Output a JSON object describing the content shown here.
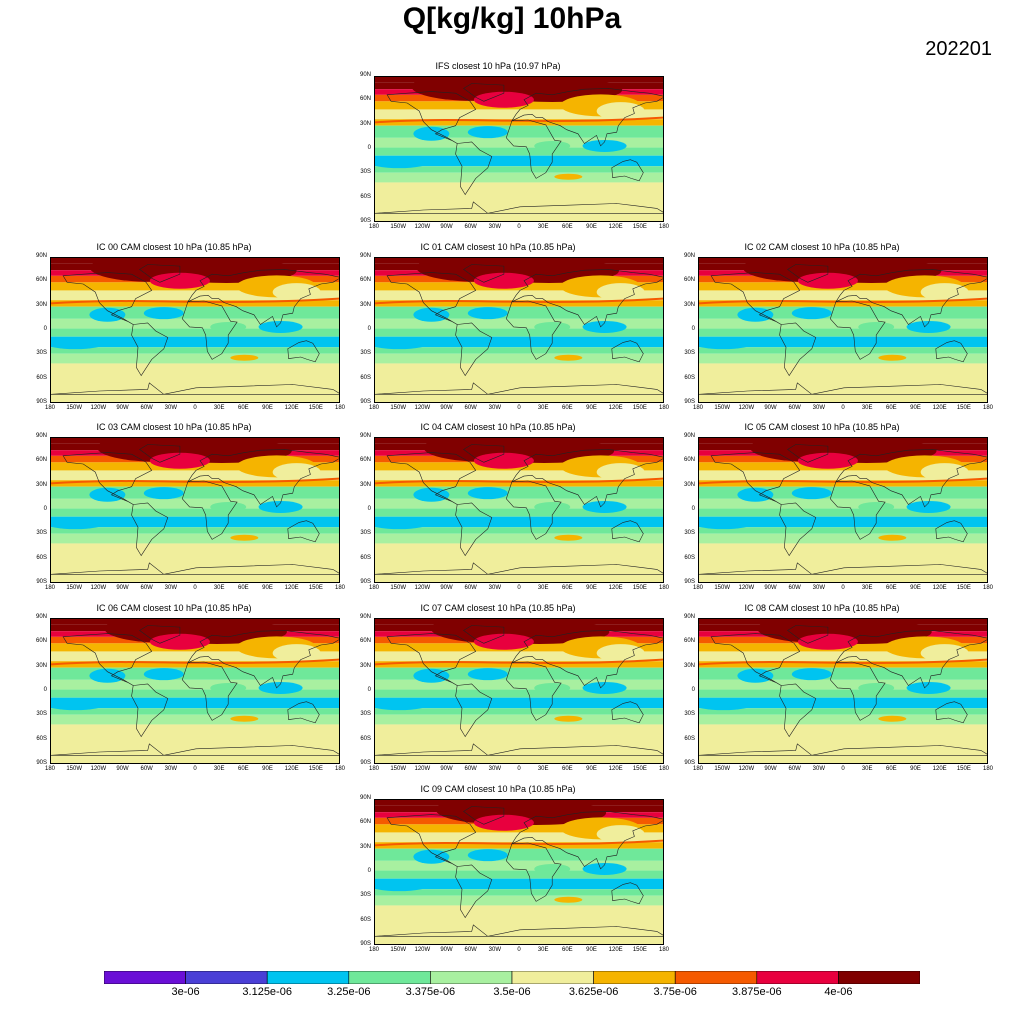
{
  "title": "Q[kg/kg] 10hPa",
  "date": "202201",
  "panels": [
    {
      "title": "IFS closest 10 hPa (10.97 hPa)",
      "variant": 0
    },
    {
      "title": "IC 00 CAM closest 10 hPa (10.85 hPa)",
      "variant": 1
    },
    {
      "title": "IC 01 CAM closest 10 hPa (10.85 hPa)",
      "variant": 2
    },
    {
      "title": "IC 02 CAM closest 10 hPa (10.85 hPa)",
      "variant": 3
    },
    {
      "title": "IC 03 CAM closest 10 hPa (10.85 hPa)",
      "variant": 4
    },
    {
      "title": "IC 04 CAM closest 10 hPa (10.85 hPa)",
      "variant": 5
    },
    {
      "title": "IC 05 CAM closest 10 hPa (10.85 hPa)",
      "variant": 6
    },
    {
      "title": "IC 06 CAM closest 10 hPa (10.85 hPa)",
      "variant": 7
    },
    {
      "title": "IC 07 CAM closest 10 hPa (10.85 hPa)",
      "variant": 8
    },
    {
      "title": "IC 08 CAM closest 10 hPa (10.85 hPa)",
      "variant": 9
    },
    {
      "title": "IC 09 CAM closest 10 hPa (10.85 hPa)",
      "variant": 10
    }
  ],
  "lat_ticks": [
    "90N",
    "60N",
    "30N",
    "0",
    "30S",
    "60S",
    "90S"
  ],
  "lon_ticks": [
    "180",
    "150W",
    "120W",
    "90W",
    "60W",
    "30W",
    "0",
    "30E",
    "60E",
    "90E",
    "120E",
    "150E",
    "180"
  ],
  "colorbar": {
    "colors": [
      "#6a0fd6",
      "#4a3fd6",
      "#00c4f0",
      "#6fe89a",
      "#a8f0a0",
      "#f0ee9c",
      "#f5b400",
      "#f55a00",
      "#e8003e",
      "#800000"
    ],
    "labels": [
      "3e-06",
      "3.125e-06",
      "3.25e-06",
      "3.375e-06",
      "3.5e-06",
      "3.625e-06",
      "3.75e-06",
      "3.875e-06",
      "4e-06"
    ]
  },
  "chart_data": {
    "type": "heatmap",
    "title": "Q[kg/kg] 10hPa",
    "variable": "Q",
    "units": "kg/kg",
    "level": "10hPa",
    "period": "202201",
    "panels": [
      "IFS closest 10 hPa (10.97 hPa)",
      "IC 00 CAM closest 10 hPa (10.85 hPa)",
      "IC 01 CAM closest 10 hPa (10.85 hPa)",
      "IC 02 CAM closest 10 hPa (10.85 hPa)",
      "IC 03 CAM closest 10 hPa (10.85 hPa)",
      "IC 04 CAM closest 10 hPa (10.85 hPa)",
      "IC 05 CAM closest 10 hPa (10.85 hPa)",
      "IC 06 CAM closest 10 hPa (10.85 hPa)",
      "IC 07 CAM closest 10 hPa (10.85 hPa)",
      "IC 08 CAM closest 10 hPa (10.85 hPa)",
      "IC 09 CAM closest 10 hPa (10.85 hPa)"
    ],
    "x_range": [
      -180,
      180
    ],
    "y_range": [
      -90,
      90
    ],
    "contour_levels": [
      3e-06,
      3.125e-06,
      3.25e-06,
      3.375e-06,
      3.5e-06,
      3.625e-06,
      3.75e-06,
      3.875e-06,
      4e-06
    ],
    "latitude_bands": [
      {
        "lat": 80,
        "level_index": 9
      },
      {
        "lat": 60,
        "level_index": 7
      },
      {
        "lat": 40,
        "level_index": 5
      },
      {
        "lat": 25,
        "level_index": 3
      },
      {
        "lat": 8,
        "level_index": 4
      },
      {
        "lat": -10,
        "level_index": 3
      },
      {
        "lat": -20,
        "level_index": 2
      },
      {
        "lat": -30,
        "level_index": 4
      },
      {
        "lat": -50,
        "level_index": 5
      },
      {
        "lat": -75,
        "level_index": 5
      }
    ]
  }
}
